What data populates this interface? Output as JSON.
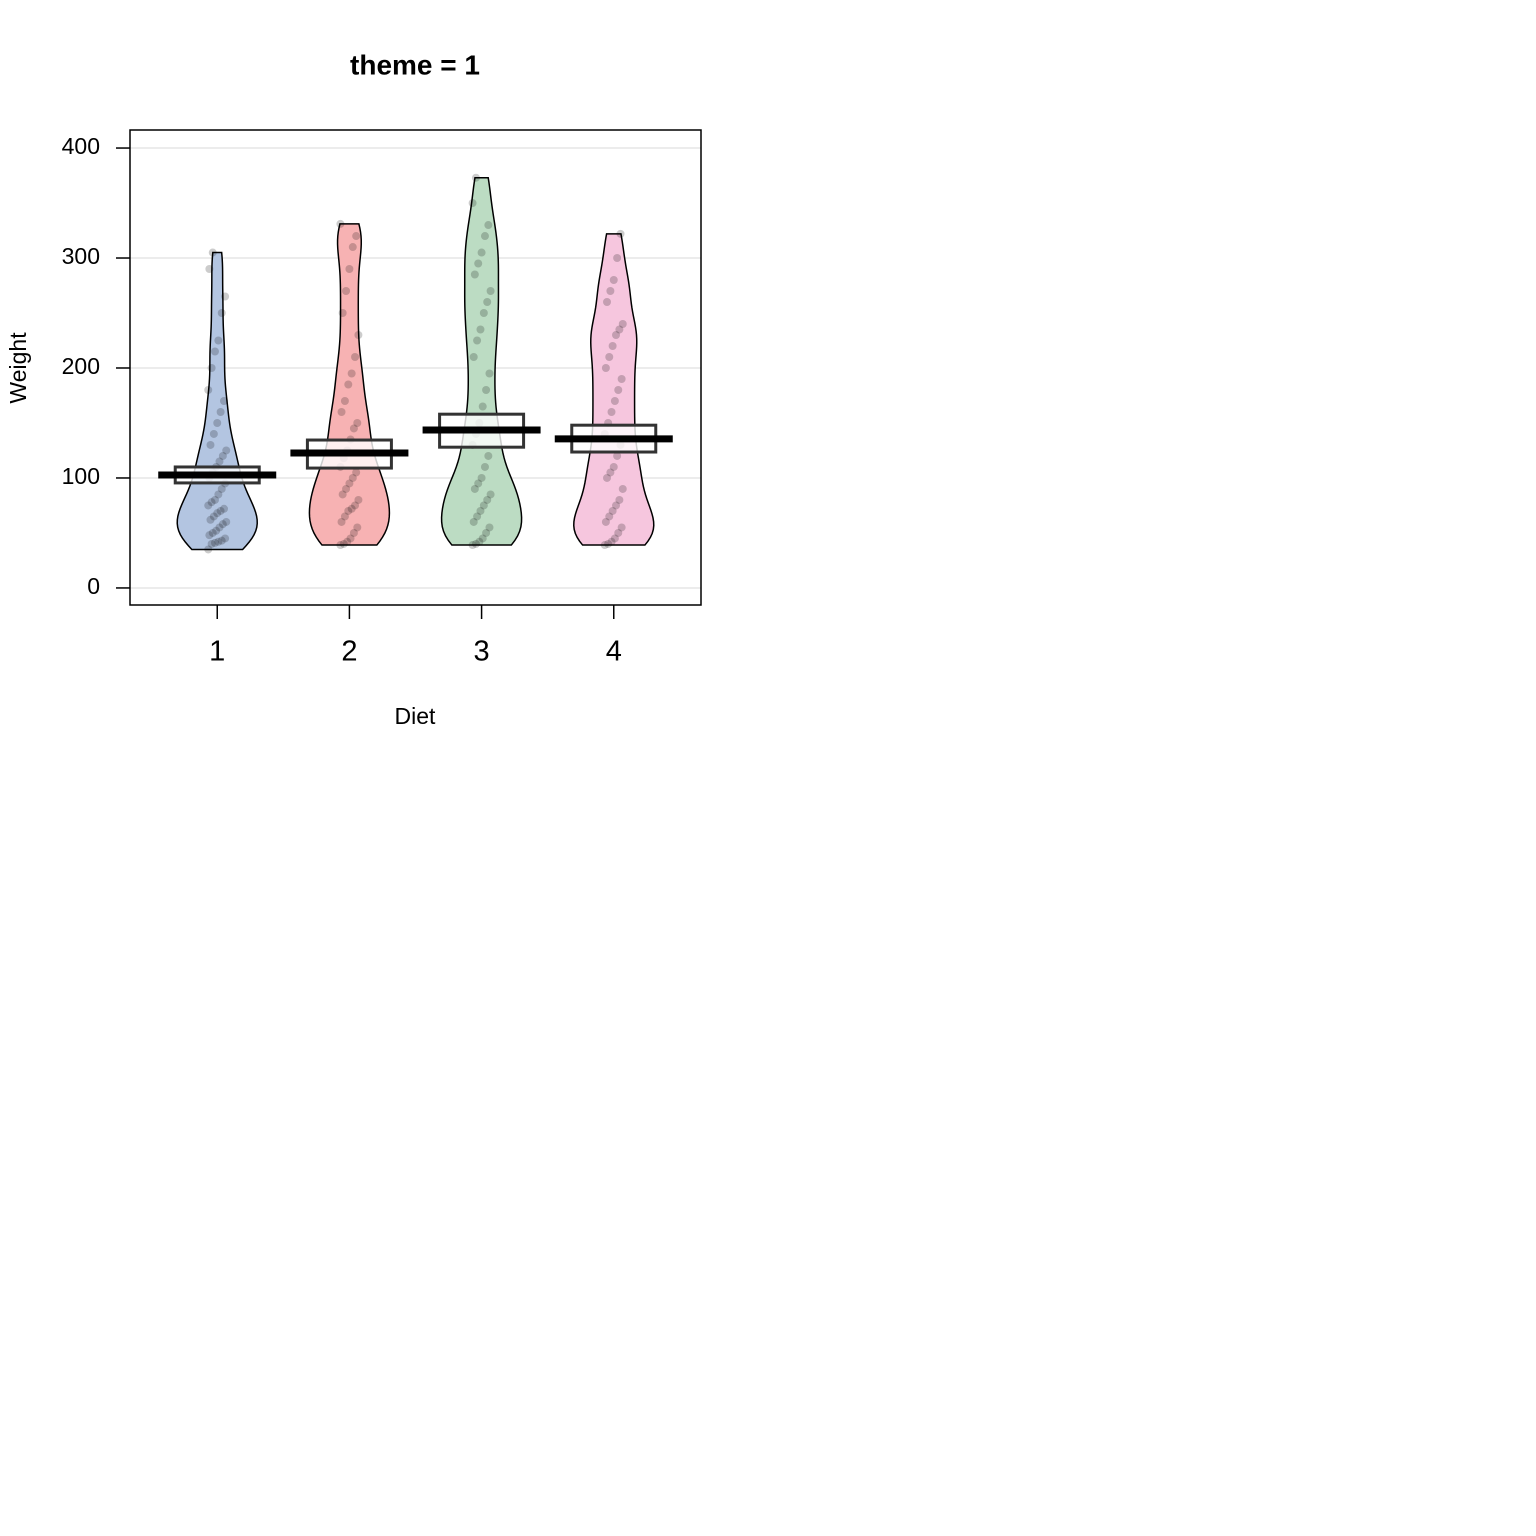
{
  "chart_data": {
    "type": "pirate",
    "title": "theme = 1",
    "x_label": "Diet",
    "y_label": "Weight",
    "categories": [
      "1",
      "2",
      "3",
      "4"
    ],
    "groups": [
      {
        "color": "#b3c5e1",
        "mean": 102.7,
        "inference": [
          95.5,
          110
        ],
        "points": [
          35,
          40,
          41,
          42,
          43,
          45,
          48,
          50,
          52,
          55,
          58,
          60,
          62,
          65,
          68,
          70,
          72,
          75,
          78,
          80,
          85,
          90,
          95,
          100,
          105,
          110,
          115,
          120,
          125,
          130,
          140,
          150,
          160,
          170,
          180,
          200,
          215,
          225,
          250,
          265,
          290,
          305
        ]
      },
      {
        "color": "#f7b2b3",
        "mean": 122.7,
        "inference": [
          109,
          134.5
        ],
        "points": [
          39,
          40,
          42,
          45,
          50,
          55,
          60,
          65,
          70,
          72,
          75,
          80,
          85,
          90,
          95,
          100,
          105,
          110,
          118,
          125,
          135,
          145,
          150,
          160,
          170,
          185,
          195,
          210,
          230,
          250,
          270,
          290,
          310,
          320,
          331
        ]
      },
      {
        "color": "#bcdcc3",
        "mean": 143.6,
        "inference": [
          128,
          158
        ],
        "points": [
          39,
          40,
          42,
          45,
          50,
          55,
          60,
          65,
          70,
          75,
          80,
          85,
          90,
          95,
          100,
          110,
          120,
          130,
          140,
          150,
          165,
          180,
          195,
          210,
          225,
          235,
          250,
          260,
          270,
          285,
          295,
          305,
          320,
          330,
          350,
          373
        ]
      },
      {
        "color": "#f6c6de",
        "mean": 135.5,
        "inference": [
          123.6,
          148
        ],
        "points": [
          39,
          40,
          42,
          45,
          50,
          55,
          60,
          65,
          70,
          75,
          80,
          90,
          100,
          105,
          110,
          120,
          130,
          140,
          150,
          160,
          170,
          180,
          190,
          200,
          210,
          220,
          230,
          235,
          240,
          260,
          270,
          280,
          300,
          322
        ]
      }
    ],
    "xlim": [
      0.34,
      4.66
    ],
    "ylim": [
      -15.5,
      416.4
    ],
    "yticks": [
      0,
      100,
      200,
      300,
      400
    ],
    "grid": true
  }
}
